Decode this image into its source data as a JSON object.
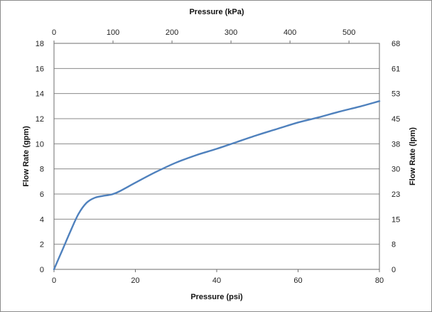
{
  "chart_data": {
    "type": "line",
    "title": "",
    "xlabel": "Pressure (psi)",
    "ylabel": "Flow Rate (gpm)",
    "secondary_xlabel": "Pressure (kPa)",
    "secondary_ylabel": "Flow Rate (lpm)",
    "xlim": [
      0,
      80
    ],
    "ylim": [
      0,
      18
    ],
    "secondary_xlim": [
      0,
      551.6
    ],
    "x_ticks": [
      "0",
      "20",
      "40",
      "60",
      "80"
    ],
    "y_ticks": [
      "0",
      "2",
      "4",
      "6",
      "8",
      "10",
      "12",
      "14",
      "16",
      "18"
    ],
    "secondary_x_ticks": [
      {
        "value": 0,
        "label": "0"
      },
      {
        "value": 100,
        "label": "100"
      },
      {
        "value": 200,
        "label": "200"
      },
      {
        "value": 300,
        "label": "300"
      },
      {
        "value": 400,
        "label": "400"
      },
      {
        "value": 500,
        "label": "500"
      }
    ],
    "secondary_y_ticks": [
      "0",
      "8",
      "15",
      "23",
      "30",
      "38",
      "45",
      "53",
      "61",
      "68"
    ],
    "grid": true,
    "line_color": "#4f81bd",
    "series": [
      {
        "name": "",
        "x": [
          0,
          2,
          4,
          6,
          8,
          10,
          12,
          14,
          16,
          20,
          25,
          30,
          35,
          40,
          45,
          50,
          55,
          60,
          65,
          70,
          75,
          80
        ],
        "y": [
          0,
          1.5,
          3.0,
          4.4,
          5.3,
          5.7,
          5.85,
          5.95,
          6.2,
          6.9,
          7.75,
          8.5,
          9.1,
          9.6,
          10.15,
          10.7,
          11.2,
          11.7,
          12.1,
          12.55,
          12.95,
          13.4
        ]
      }
    ]
  }
}
